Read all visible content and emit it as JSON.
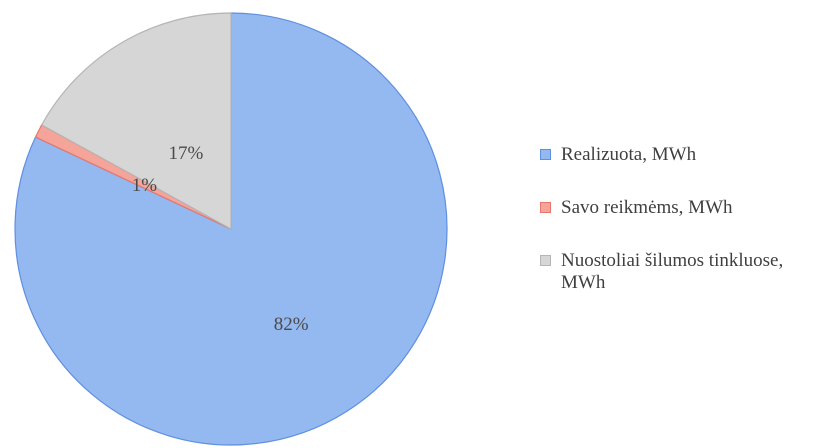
{
  "chart_data": {
    "type": "pie",
    "categories": [
      "Realizuota, MWh",
      "Savo reikmėms, MWh",
      "Nuostoliai šilumos tinkluose, MWh"
    ],
    "values": [
      82,
      1,
      17
    ],
    "data_labels": [
      "82%",
      "1%",
      "17%"
    ],
    "colors": [
      "#94b8f0",
      "#f5a49a",
      "#d6d6d6"
    ],
    "edge_colors": [
      "#5f8fe0",
      "#e8776b",
      "#b5b5b5"
    ],
    "start": "12 o'clock",
    "direction": "clockwise",
    "legend_position": "right",
    "title": ""
  }
}
